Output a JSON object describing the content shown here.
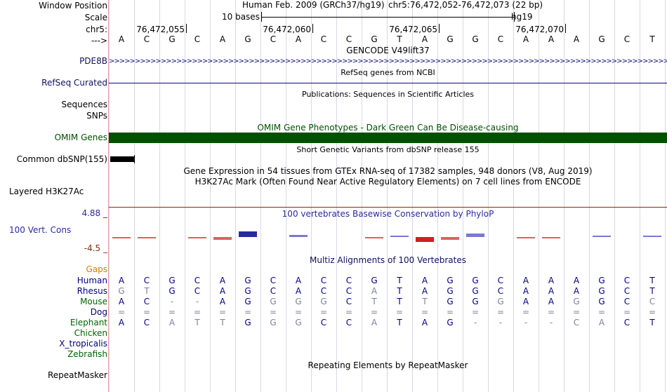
{
  "labels": {
    "window_position": "Window Position",
    "scale": "Scale",
    "chrom": "chr5:",
    "arrow": "--->",
    "gencode_gene": "PDE8B",
    "refseq": "RefSeq Curated",
    "sequences": "Sequences",
    "snps": "SNPs",
    "omim": "OMIM Genes",
    "dbsnp": "Common dbSNP(155)",
    "h3k27ac": "Layered H3K27Ac",
    "cons_max": "4.88 _",
    "cons_label": "100 Vert. Cons",
    "cons_min": "-4.5 _",
    "gaps": "Gaps",
    "repeatmasker": "RepeatMasker"
  },
  "header": {
    "assembly": "Human Feb. 2009 (GRCh37/hg19)",
    "position": "chr5:76,472,052-76,472,073 (22 bp)",
    "scale_text": "10 bases",
    "scale_db": "hg19",
    "ruler": [
      "76,472,055",
      "76,472,060",
      "76,472,065",
      "76,472,070"
    ]
  },
  "sequence": [
    "A",
    "C",
    "G",
    "C",
    "A",
    "G",
    "C",
    "A",
    "C",
    "C",
    "G",
    "T",
    "A",
    "G",
    "G",
    "C",
    "A",
    "A",
    "A",
    "G",
    "C",
    "T"
  ],
  "tracks": {
    "gencode_title": "GENCODE V49lift37",
    "refseq_title": "RefSeq genes from NCBI",
    "publications_title": "Publications: Sequences in Scientific Articles",
    "omim_title": "OMIM Gene Phenotypes - Dark Green Can Be Disease-causing",
    "dbsnp_title": "Short Genetic Variants from dbSNP release 155",
    "gtex_title": "Gene Expression in 54 tissues from GTEx RNA-seq of 17382 samples, 948 donors (V8, Aug 2019)",
    "h3k27ac_title": "H3K27Ac Mark (Often Found Near Active Regulatory Elements) on 7 cell lines from ENCODE",
    "cons_title": "100 vertebrates Basewise Conservation by PhyloP",
    "multiz_title": "Multiz Alignments of 100 Vertebrates",
    "repeat_title": "Repeating Elements by RepeatMasker"
  },
  "species": [
    {
      "name": "Human",
      "color": "#000080",
      "bases": "ACGCAGCACCGTAGGCAAAGCT"
    },
    {
      "name": "Rhesus",
      "color": "#000080",
      "bases": "GTGCAGCACCATAGGCAAAGCT"
    },
    {
      "name": "Mouse",
      "color": "#006400",
      "bases": "AC--AGGGGCTTTGGGAAGGCC"
    },
    {
      "name": "Dog",
      "color": "#000080",
      "bases": "======================"
    },
    {
      "name": "Elephant",
      "color": "#006400",
      "bases": "ACATTGGGCCATAG----CACT"
    },
    {
      "name": "Chicken",
      "color": "#006400",
      "bases": ""
    },
    {
      "name": "X_tropicalis",
      "color": "#000080",
      "bases": ""
    },
    {
      "name": "Zebrafish",
      "color": "#006400",
      "bases": ""
    }
  ],
  "colors": {
    "gene_blue": "#0c0c78",
    "label_blue": "#101060",
    "omim_green": "#005000",
    "gaps_orange": "#d08000",
    "cons_blue": "#2a2aa0",
    "cons_red": "#8a2a0a",
    "mismatch_gray": "#8080a0"
  },
  "conservation": [
    -0.3,
    -0.25,
    0,
    -0.25,
    -0.9,
    2.1,
    0,
    0.8,
    0,
    0,
    -0.25,
    0.6,
    -1.8,
    -0.9,
    1.2,
    0,
    -0.3,
    -0.4,
    0,
    0.4,
    0,
    0.5
  ]
}
